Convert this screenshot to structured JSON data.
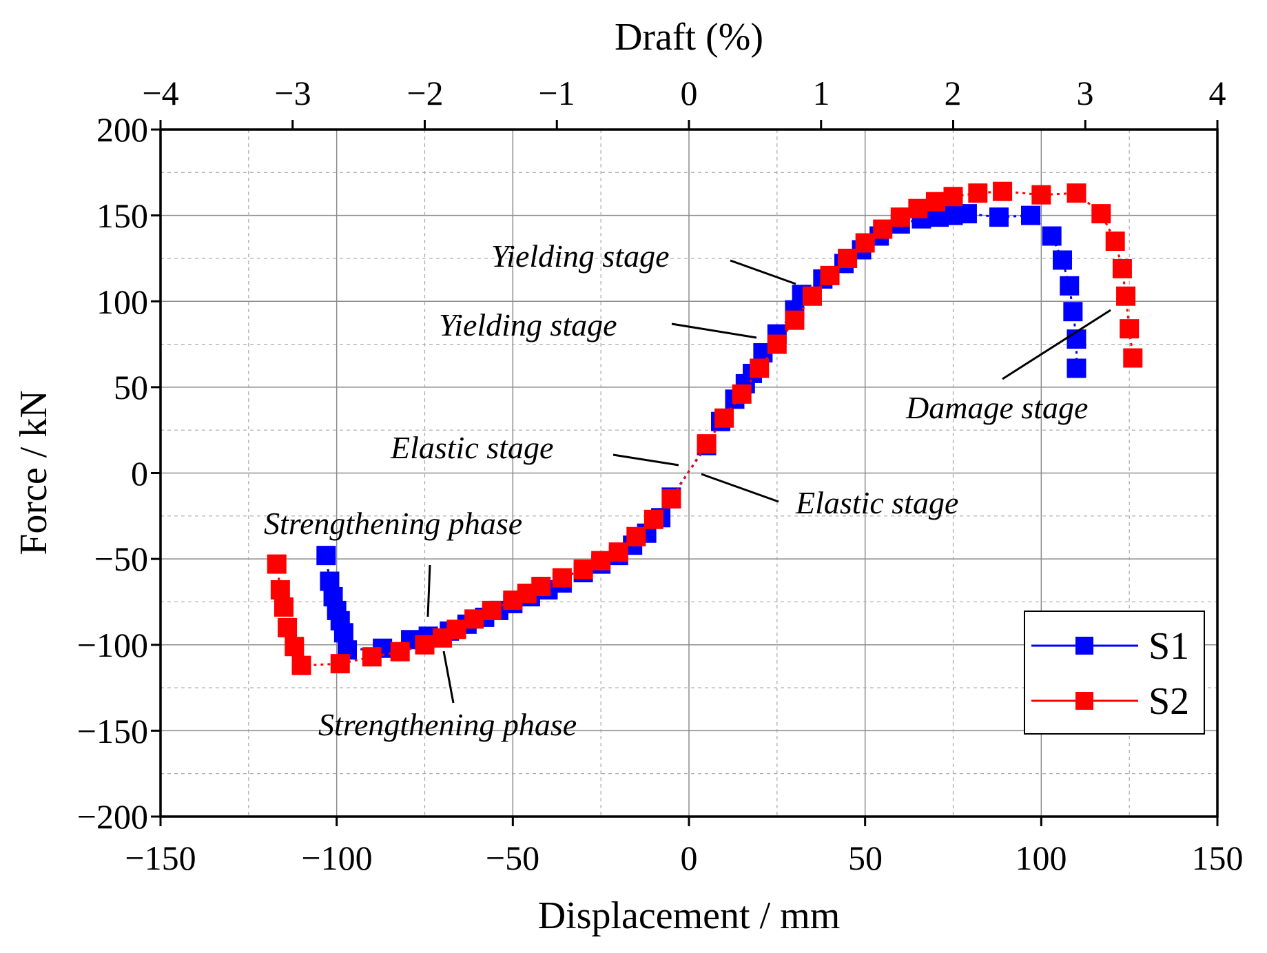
{
  "chart_data": {
    "type": "scatter",
    "title": "",
    "xlabel": "Displacement / mm",
    "ylabel": "Force / kN",
    "x2label": "Draft (%)",
    "xlim": [
      -150,
      150
    ],
    "ylim": [
      -200,
      200
    ],
    "x2lim": [
      -4,
      4
    ],
    "xticks": [
      -150,
      -100,
      -50,
      0,
      50,
      100,
      150
    ],
    "yticks": [
      -200,
      -150,
      -100,
      -50,
      0,
      50,
      100,
      150,
      200
    ],
    "x2ticks": [
      -4,
      -3,
      -2,
      -1,
      0,
      1,
      2,
      3,
      4
    ],
    "xtick_labels": [
      "−150",
      "−100",
      "−50",
      "0",
      "50",
      "100",
      "150"
    ],
    "ytick_labels": [
      "−200",
      "−150",
      "−100",
      "−50",
      "0",
      "50",
      "100",
      "150",
      "200"
    ],
    "x2tick_labels": [
      "−4",
      "−3",
      "−2",
      "−1",
      "0",
      "1",
      "2",
      "3",
      "4"
    ],
    "grid": true,
    "legend_position": "bottom-right",
    "series": [
      {
        "name": "S1",
        "color": "#0000ff",
        "points": [
          [
            -103,
            -48
          ],
          [
            -102,
            -63
          ],
          [
            -101,
            -72
          ],
          [
            -100,
            -80
          ],
          [
            -99,
            -86
          ],
          [
            -98,
            -93
          ],
          [
            -97,
            -103
          ],
          [
            -87,
            -102
          ],
          [
            -79,
            -97
          ],
          [
            -74,
            -95
          ],
          [
            -68,
            -92
          ],
          [
            -63,
            -88
          ],
          [
            -58,
            -84
          ],
          [
            -54,
            -80
          ],
          [
            -50,
            -76
          ],
          [
            -45,
            -72
          ],
          [
            -40,
            -68
          ],
          [
            -36,
            -64
          ],
          [
            -30,
            -58
          ],
          [
            -25,
            -53
          ],
          [
            -20,
            -48
          ],
          [
            -16,
            -42
          ],
          [
            -12,
            -35
          ],
          [
            -8,
            -26
          ],
          [
            -5,
            -14
          ],
          [
            5,
            16
          ],
          [
            9,
            30
          ],
          [
            13,
            43
          ],
          [
            16,
            52
          ],
          [
            18,
            58
          ],
          [
            21,
            70
          ],
          [
            25,
            81
          ],
          [
            30,
            95
          ],
          [
            32,
            104
          ],
          [
            38,
            113
          ],
          [
            44,
            122
          ],
          [
            49,
            130
          ],
          [
            54,
            138
          ],
          [
            60,
            145
          ],
          [
            66,
            148
          ],
          [
            71,
            149
          ],
          [
            75,
            150
          ],
          [
            79,
            151
          ],
          [
            88,
            149
          ],
          [
            97,
            150
          ],
          [
            103,
            138
          ],
          [
            106,
            124
          ],
          [
            108,
            109
          ],
          [
            109,
            94
          ],
          [
            110,
            78
          ],
          [
            110,
            61
          ]
        ]
      },
      {
        "name": "S2",
        "color": "#ff0000",
        "points": [
          [
            -117,
            -53
          ],
          [
            -116,
            -68
          ],
          [
            -115,
            -78
          ],
          [
            -114,
            -90
          ],
          [
            -112,
            -101
          ],
          [
            -110,
            -112
          ],
          [
            -99,
            -111
          ],
          [
            -90,
            -107
          ],
          [
            -82,
            -104
          ],
          [
            -75,
            -100
          ],
          [
            -70,
            -96
          ],
          [
            -66,
            -91
          ],
          [
            -61,
            -85
          ],
          [
            -56,
            -80
          ],
          [
            -50,
            -74
          ],
          [
            -46,
            -70
          ],
          [
            -42,
            -66
          ],
          [
            -36,
            -61
          ],
          [
            -30,
            -56
          ],
          [
            -25,
            -51
          ],
          [
            -20,
            -46
          ],
          [
            -15,
            -37
          ],
          [
            -10,
            -27
          ],
          [
            -5,
            -15
          ],
          [
            5,
            17
          ],
          [
            10,
            32
          ],
          [
            15,
            46
          ],
          [
            20,
            61
          ],
          [
            25,
            75
          ],
          [
            30,
            89
          ],
          [
            35,
            103
          ],
          [
            40,
            115
          ],
          [
            45,
            125
          ],
          [
            50,
            134
          ],
          [
            55,
            142
          ],
          [
            60,
            149
          ],
          [
            65,
            154
          ],
          [
            70,
            158
          ],
          [
            75,
            161
          ],
          [
            82,
            163
          ],
          [
            89,
            164
          ],
          [
            100,
            162
          ],
          [
            110,
            163
          ],
          [
            117,
            151
          ],
          [
            121,
            135
          ],
          [
            123,
            119
          ],
          [
            124,
            103
          ],
          [
            125,
            84
          ],
          [
            126,
            67
          ]
        ]
      }
    ],
    "annotations": [
      {
        "text": "Yielding stage",
        "series": "S1"
      },
      {
        "text": "Yielding stage",
        "series": "S2"
      },
      {
        "text": "Elastic stage",
        "series": "S1"
      },
      {
        "text": "Elastic stage",
        "series": "S2"
      },
      {
        "text": "Strengthening phase",
        "series": "S1"
      },
      {
        "text": "Strengthening phase",
        "series": "S2"
      },
      {
        "text": "Damage stage",
        "series": "S2"
      }
    ]
  }
}
